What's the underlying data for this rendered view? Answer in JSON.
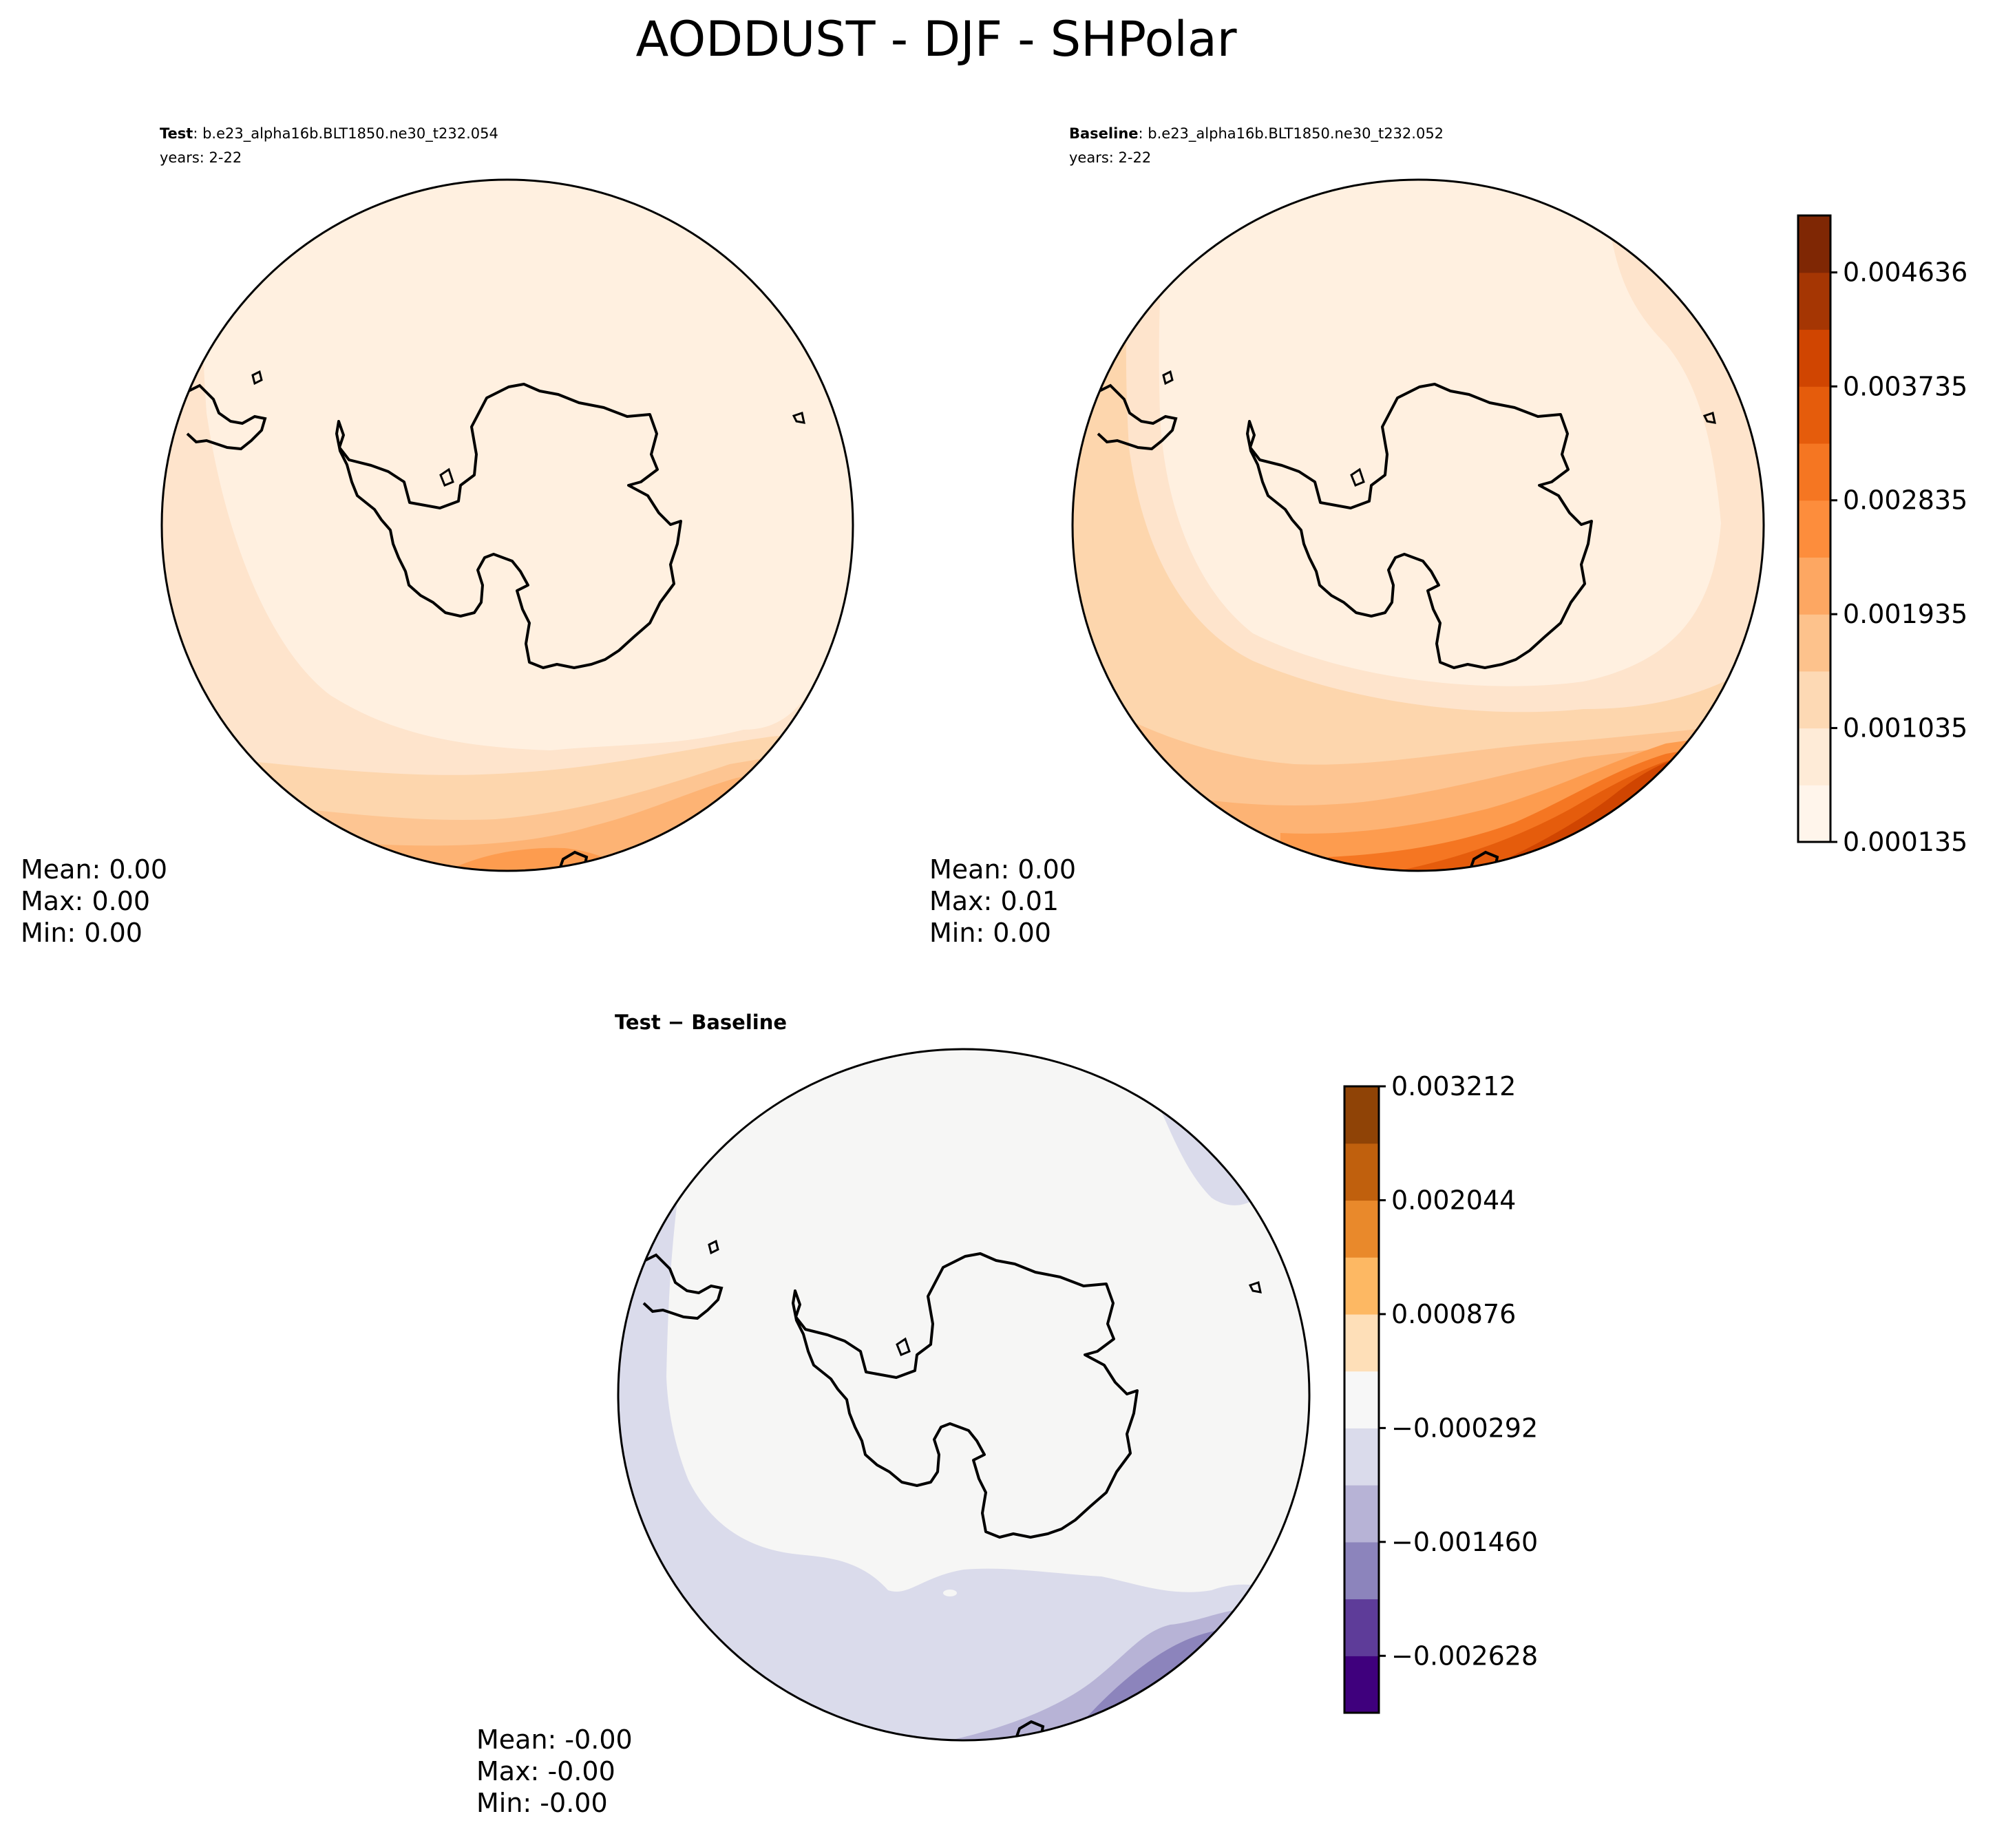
{
  "figure": {
    "title": "AODDUST - DJF - SHPolar"
  },
  "panels": {
    "test": {
      "label_bold": "Test",
      "case": ": b.e23_alpha16b.BLT1850.ne30_t232.054",
      "years": "years: 2-22",
      "stats": {
        "mean": "Mean:  0.00",
        "max": "Max:  0.00",
        "min": "Min:  0.00"
      }
    },
    "baseline": {
      "label_bold": "Baseline",
      "case": ": b.e23_alpha16b.BLT1850.ne30_t232.052",
      "years": "years: 2-22",
      "stats": {
        "mean": "Mean:  0.00",
        "max": "Max:  0.01",
        "min": "Min:  0.00"
      }
    },
    "diff": {
      "title": "Test − Baseline",
      "stats": {
        "mean": "Mean: -0.00",
        "max": "Max: -0.00",
        "min": "Min: -0.00"
      }
    }
  },
  "colorbars": {
    "main": {
      "ticks": [
        "0.004636",
        "0.003735",
        "0.002835",
        "0.001935",
        "0.001035",
        "0.000135"
      ],
      "tick_values": [
        0.004636,
        0.003735,
        0.002835,
        0.001935,
        0.001035,
        0.000135
      ],
      "range": [
        0.000135,
        0.005086
      ],
      "colors": [
        "#fff5eb",
        "#feebd7",
        "#fdd9b4",
        "#fdc28c",
        "#fda762",
        "#fd8d3c",
        "#f57622",
        "#e55c0c",
        "#d04501",
        "#a53603",
        "#7f2704"
      ]
    },
    "diff": {
      "ticks": [
        "0.003212",
        "0.002044",
        "0.000876",
        "−0.000292",
        "−0.001460",
        "−0.002628"
      ],
      "tick_values": [
        0.003212,
        0.002044,
        0.000876,
        -0.000292,
        -0.00146,
        -0.002628
      ],
      "range": [
        -0.003212,
        0.003212
      ],
      "colors": [
        "#3f007d",
        "#5e3c99",
        "#8c84bc",
        "#b7b3d6",
        "#dadbeb",
        "#f7f7f7",
        "#fedfb8",
        "#fdb863",
        "#e9892b",
        "#c0600d",
        "#8f4306"
      ]
    }
  },
  "map_colors": {
    "main": {
      "c0": "#fff0e0",
      "c1": "#fee4cc",
      "c2": "#fdd6ad",
      "c3": "#fdc592",
      "c4": "#fdb374",
      "c5": "#fd9c4f",
      "c6": "#f57622",
      "c7": "#e55c0c",
      "c8": "#d04501",
      "c9": "#a53603",
      "c10": "#7f2704"
    },
    "diff": {
      "neutral": "#f6f6f5",
      "d1": "#dadbeb",
      "d2": "#b7b3d6",
      "d3": "#8c84bc",
      "d4": "#5e3c99",
      "d5": "#3f007d"
    }
  }
}
